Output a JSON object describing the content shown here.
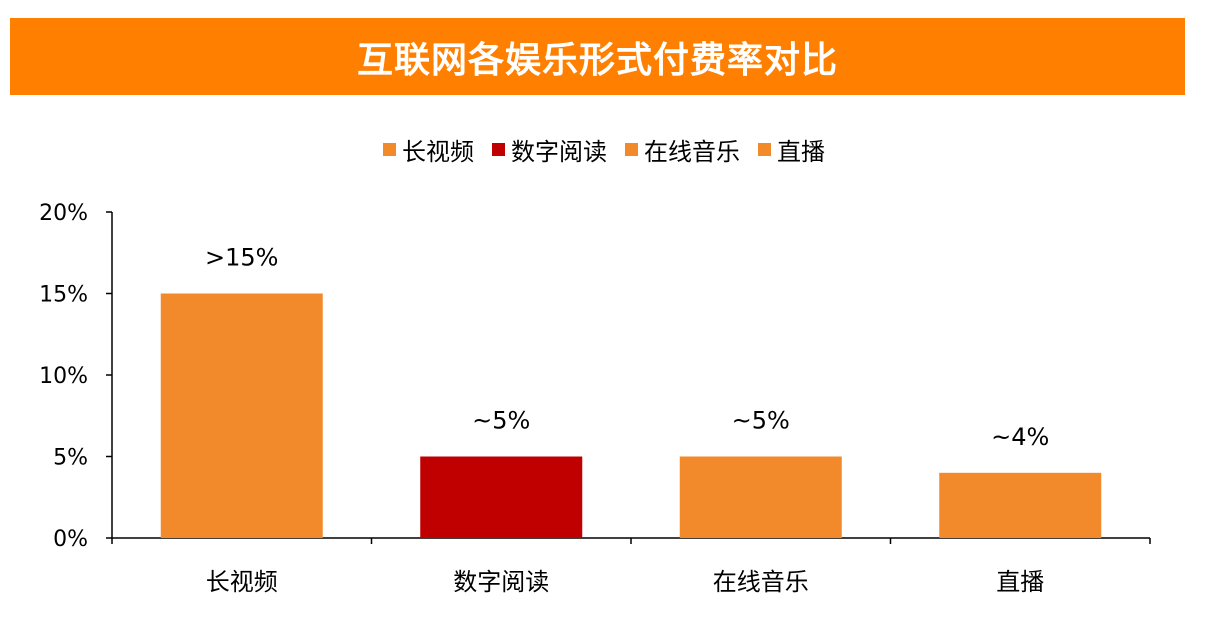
{
  "chart_data": {
    "type": "bar",
    "title": "互联网各娱乐形式付费率对比",
    "categories": [
      "长视频",
      "数字阅读",
      "在线音乐",
      "直播"
    ],
    "values": [
      15,
      5,
      5,
      4
    ],
    "data_labels": [
      ">15%",
      "~5%",
      "~5%",
      "~4%"
    ],
    "colors": [
      "#F28A2B",
      "#C00000",
      "#F28A2B",
      "#F28A2B"
    ],
    "legend": [
      "长视频",
      "数字阅读",
      "在线音乐",
      "直播"
    ],
    "legend_position": "top",
    "xlabel": "",
    "ylabel": "",
    "ylim": [
      0,
      20
    ],
    "yticks": [
      0,
      5,
      10,
      15,
      20
    ],
    "ytick_labels": [
      "0%",
      "5%",
      "10%",
      "15%",
      "20%"
    ],
    "grid": false
  }
}
